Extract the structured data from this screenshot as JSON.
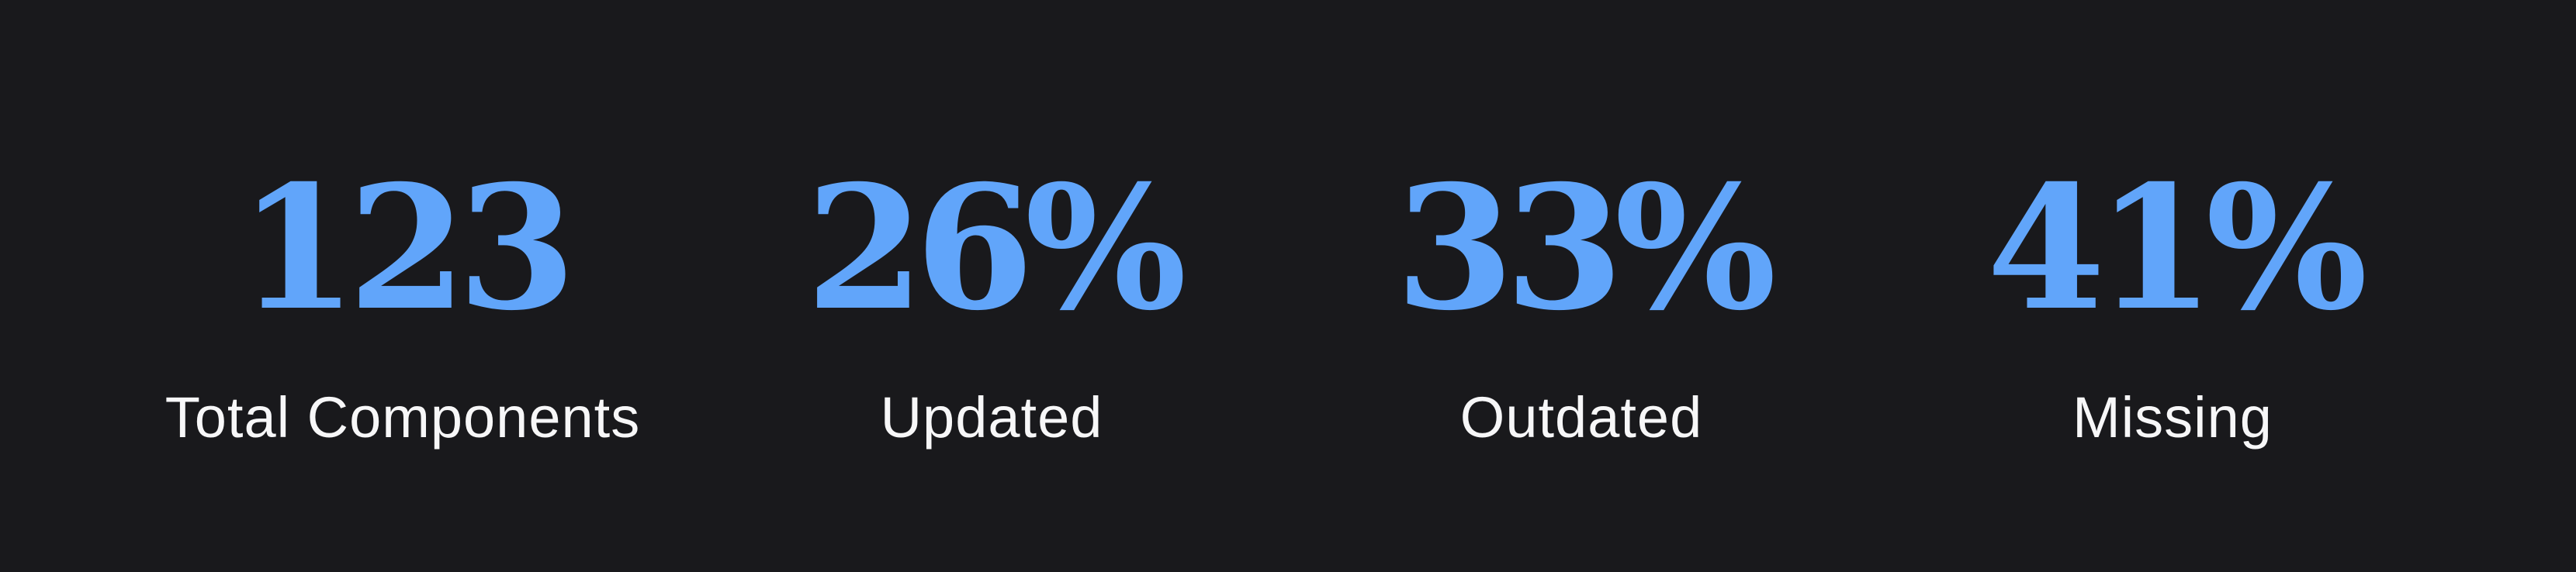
{
  "stats": [
    {
      "value": "123",
      "label": "Total Components"
    },
    {
      "value": "26%",
      "label": "Updated"
    },
    {
      "value": "33%",
      "label": "Outdated"
    },
    {
      "value": "41%",
      "label": "Missing"
    }
  ],
  "colors": {
    "background": "#19191c",
    "value": "#61a5fa",
    "label": "#f7f7f8"
  }
}
